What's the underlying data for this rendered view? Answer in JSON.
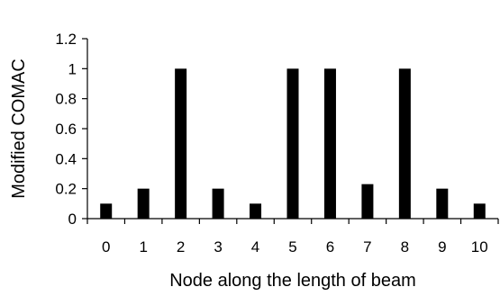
{
  "chart_data": {
    "type": "bar",
    "title": "",
    "xlabel": "Node along the length of beam",
    "ylabel": "Modified COMAC",
    "categories": [
      "0",
      "1",
      "2",
      "3",
      "4",
      "5",
      "6",
      "7",
      "8",
      "9",
      "10"
    ],
    "values": [
      0.1,
      0.2,
      1.0,
      0.2,
      0.1,
      1.0,
      1.0,
      0.23,
      1.0,
      0.2,
      0.1
    ],
    "ylim": [
      0,
      1.2
    ],
    "yticks": [
      "0",
      "0.2",
      "0.4",
      "0.6",
      "0.8",
      "1",
      "1.2"
    ],
    "grid": false,
    "legend": "none",
    "bar_color": "#000000",
    "axis_color": "#000000"
  }
}
